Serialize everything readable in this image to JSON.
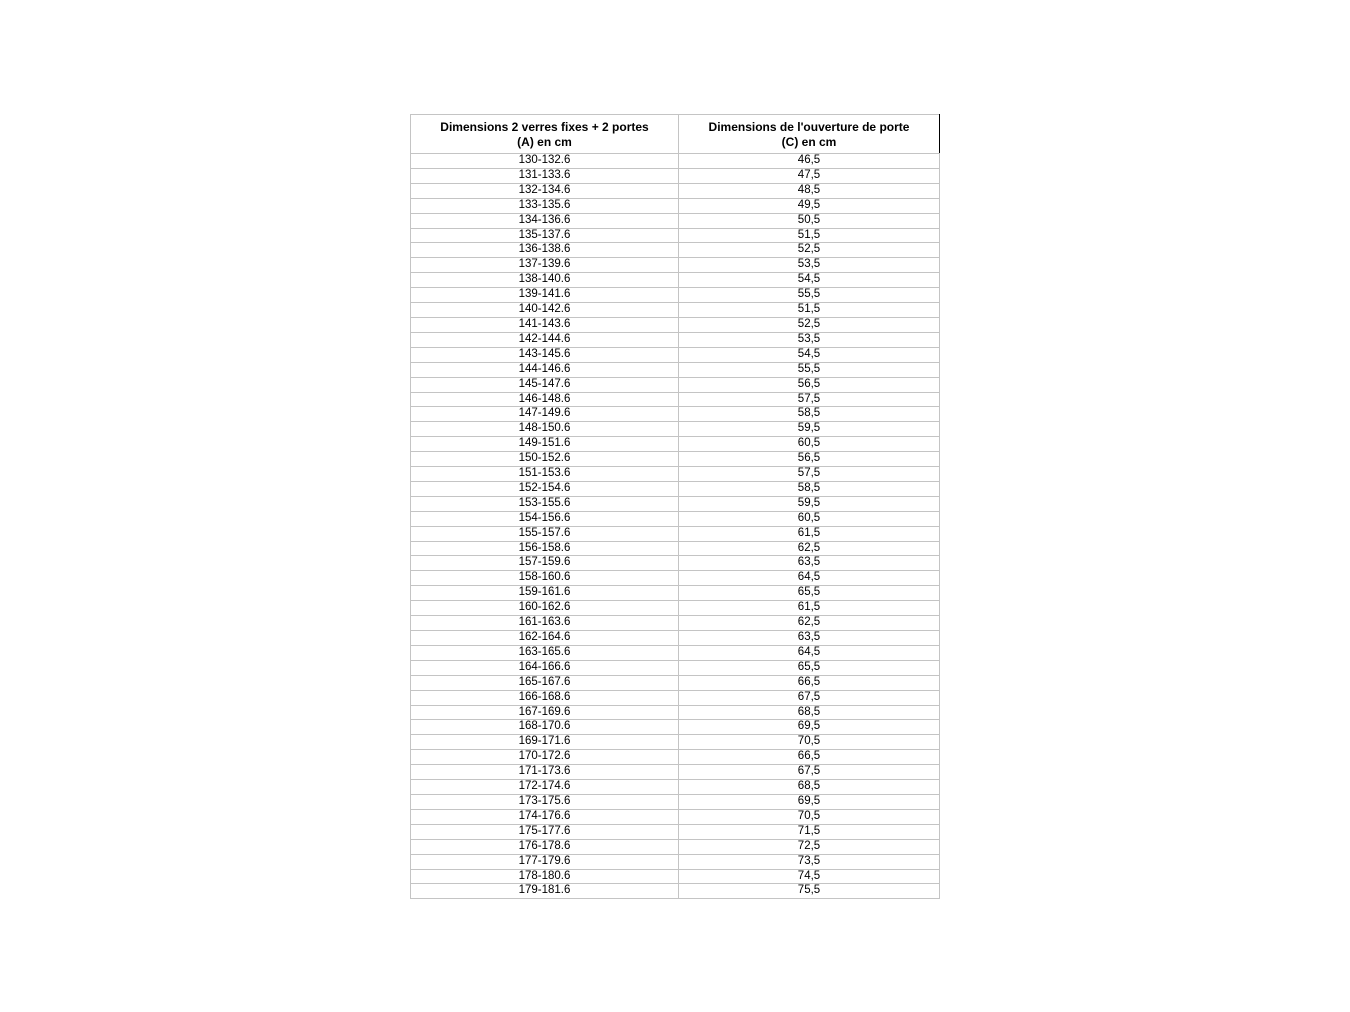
{
  "table": {
    "headers": [
      [
        "Dimensions 2 verres fixes + 2 portes",
        "(A) en cm"
      ],
      [
        "Dimensions de l'ouverture de porte",
        "(C) en cm"
      ]
    ],
    "rows": [
      [
        "130-132.6",
        "46,5"
      ],
      [
        "131-133.6",
        "47,5"
      ],
      [
        "132-134.6",
        "48,5"
      ],
      [
        "133-135.6",
        "49,5"
      ],
      [
        "134-136.6",
        "50,5"
      ],
      [
        "135-137.6",
        "51,5"
      ],
      [
        "136-138.6",
        "52,5"
      ],
      [
        "137-139.6",
        "53,5"
      ],
      [
        "138-140.6",
        "54,5"
      ],
      [
        "139-141.6",
        "55,5"
      ],
      [
        "140-142.6",
        "51,5"
      ],
      [
        "141-143.6",
        "52,5"
      ],
      [
        "142-144.6",
        "53,5"
      ],
      [
        "143-145.6",
        "54,5"
      ],
      [
        "144-146.6",
        "55,5"
      ],
      [
        "145-147.6",
        "56,5"
      ],
      [
        "146-148.6",
        "57,5"
      ],
      [
        "147-149.6",
        "58,5"
      ],
      [
        "148-150.6",
        "59,5"
      ],
      [
        "149-151.6",
        "60,5"
      ],
      [
        "150-152.6",
        "56,5"
      ],
      [
        "151-153.6",
        "57,5"
      ],
      [
        "152-154.6",
        "58,5"
      ],
      [
        "153-155.6",
        "59,5"
      ],
      [
        "154-156.6",
        "60,5"
      ],
      [
        "155-157.6",
        "61,5"
      ],
      [
        "156-158.6",
        "62,5"
      ],
      [
        "157-159.6",
        "63,5"
      ],
      [
        "158-160.6",
        "64,5"
      ],
      [
        "159-161.6",
        "65,5"
      ],
      [
        "160-162.6",
        "61,5"
      ],
      [
        "161-163.6",
        "62,5"
      ],
      [
        "162-164.6",
        "63,5"
      ],
      [
        "163-165.6",
        "64,5"
      ],
      [
        "164-166.6",
        "65,5"
      ],
      [
        "165-167.6",
        "66,5"
      ],
      [
        "166-168.6",
        "67,5"
      ],
      [
        "167-169.6",
        "68,5"
      ],
      [
        "168-170.6",
        "69,5"
      ],
      [
        "169-171.6",
        "70,5"
      ],
      [
        "170-172.6",
        "66,5"
      ],
      [
        "171-173.6",
        "67,5"
      ],
      [
        "172-174.6",
        "68,5"
      ],
      [
        "173-175.6",
        "69,5"
      ],
      [
        "174-176.6",
        "70,5"
      ],
      [
        "175-177.6",
        "71,5"
      ],
      [
        "176-178.6",
        "72,5"
      ],
      [
        "177-179.6",
        "73,5"
      ],
      [
        "178-180.6",
        "74,5"
      ],
      [
        "179-181.6",
        "75,5"
      ]
    ]
  }
}
